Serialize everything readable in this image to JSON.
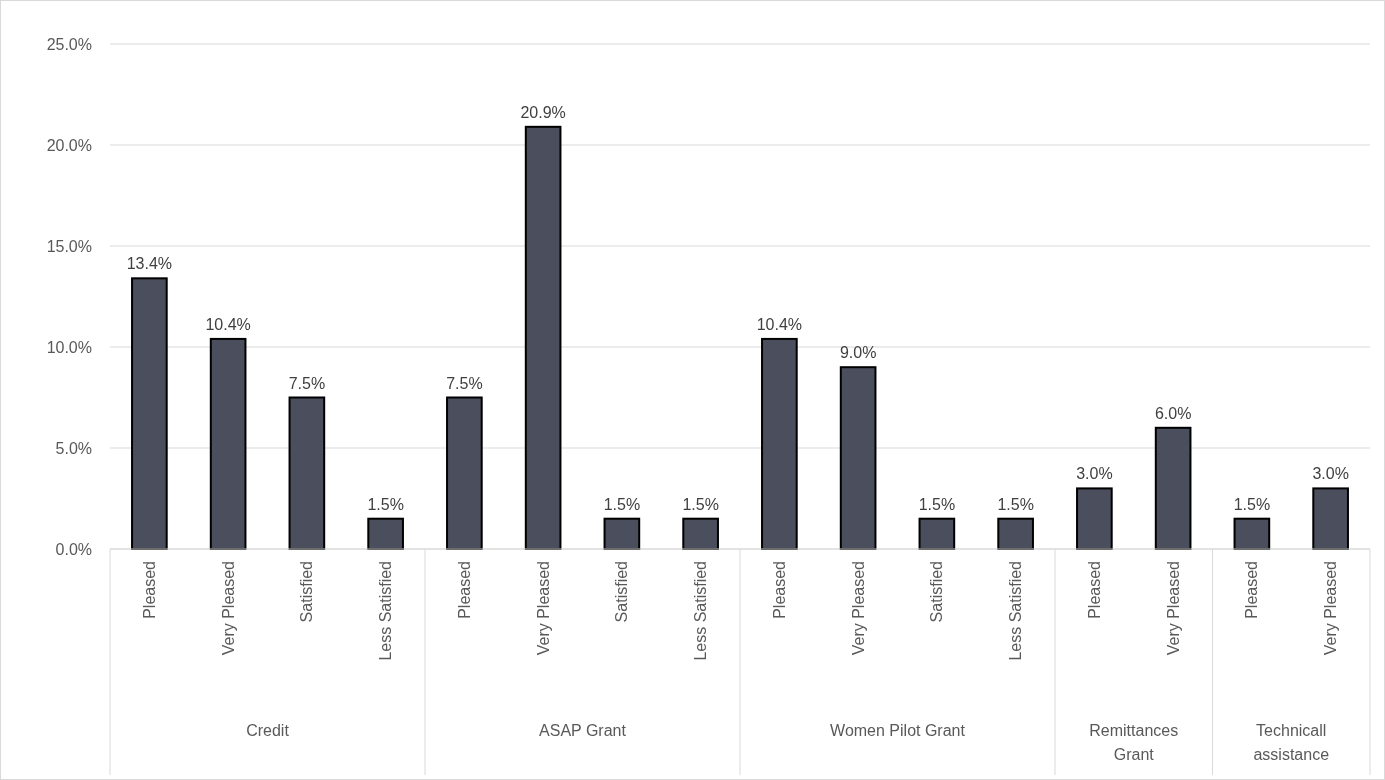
{
  "chart_data": {
    "type": "bar",
    "categories": [
      "Pleased",
      "Very Pleased",
      "Satisfied",
      "Less Satisfied",
      "Pleased",
      "Very Pleased",
      "Satisfied",
      "Less Satisfied",
      "Pleased",
      "Very Pleased",
      "Satisfied",
      "Less Satisfied",
      "Pleased",
      "Very Pleased",
      "Pleased",
      "Very Pleased"
    ],
    "values": [
      13.4,
      10.4,
      7.5,
      1.5,
      7.5,
      20.9,
      1.5,
      1.5,
      10.4,
      9.0,
      1.5,
      1.5,
      3.0,
      6.0,
      1.5,
      3.0
    ],
    "value_labels": [
      "13.4%",
      "10.4%",
      "7.5%",
      "1.5%",
      "7.5%",
      "20.9%",
      "1.5%",
      "1.5%",
      "10.4%",
      "9.0%",
      "1.5%",
      "1.5%",
      "3.0%",
      "6.0%",
      "1.5%",
      "3.0%"
    ],
    "color": "#4b4e5c",
    "ylim": [
      0,
      25
    ],
    "yticks": [
      {
        "value": 0,
        "label": "0.0%"
      },
      {
        "value": 5,
        "label": "5.0%"
      },
      {
        "value": 10,
        "label": "10.0%"
      },
      {
        "value": 15,
        "label": "15.0%"
      },
      {
        "value": 20,
        "label": "20.0%"
      },
      {
        "value": 25,
        "label": "25.0%"
      }
    ],
    "grid": "y",
    "annotations": [
      "Credit",
      "ASAP Grant",
      "Women Pilot Grant",
      "Remittances Grant",
      "Technicall assistance"
    ]
  }
}
